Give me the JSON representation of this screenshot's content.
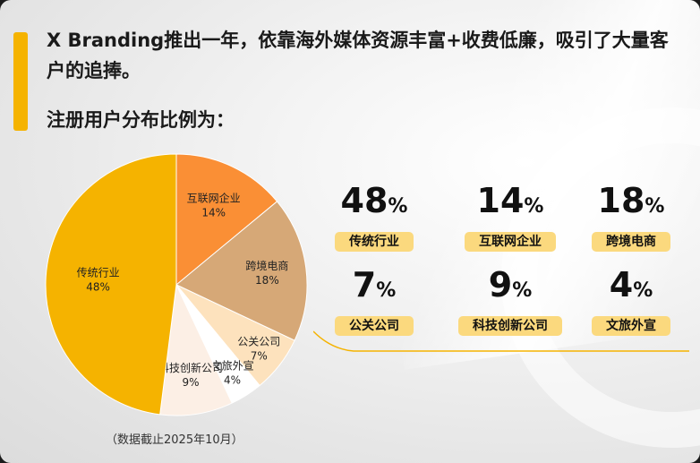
{
  "header": {
    "headline": "X Branding推出一年，依靠海外媒体资源丰富+收费低廉，吸引了大量客户的追捧。",
    "subheadline": "注册用户分布比例为："
  },
  "footnote": "（数据截止2025年10月）",
  "colors": {
    "accent": "#f5b300",
    "pill": "#fbd97e"
  },
  "chart_data": {
    "type": "pie",
    "title": "",
    "unit": "%",
    "categories": [
      "互联网企业",
      "跨境电商",
      "公关公司",
      "文旅外宣",
      "科技创新公司",
      "传统行业"
    ],
    "values": [
      14,
      18,
      7,
      4,
      9,
      48
    ],
    "value_labels": [
      "14%",
      "18%",
      "7%",
      "4%",
      "9%",
      "48%"
    ],
    "colors": [
      "#fa8f35",
      "#d6a877",
      "#fde2bd",
      "#ffffff",
      "#fcefe5",
      "#f5b300"
    ],
    "legend": "none"
  },
  "stats": [
    {
      "num": "48",
      "pct": "%",
      "label": "传统行业"
    },
    {
      "num": "14",
      "pct": "%",
      "label": "互联网企业"
    },
    {
      "num": "18",
      "pct": "%",
      "label": "跨境电商"
    },
    {
      "num": "7",
      "pct": "%",
      "label": "公关公司"
    },
    {
      "num": "9",
      "pct": "%",
      "label": "科技创新公司"
    },
    {
      "num": "4",
      "pct": "%",
      "label": "文旅外宣"
    }
  ]
}
